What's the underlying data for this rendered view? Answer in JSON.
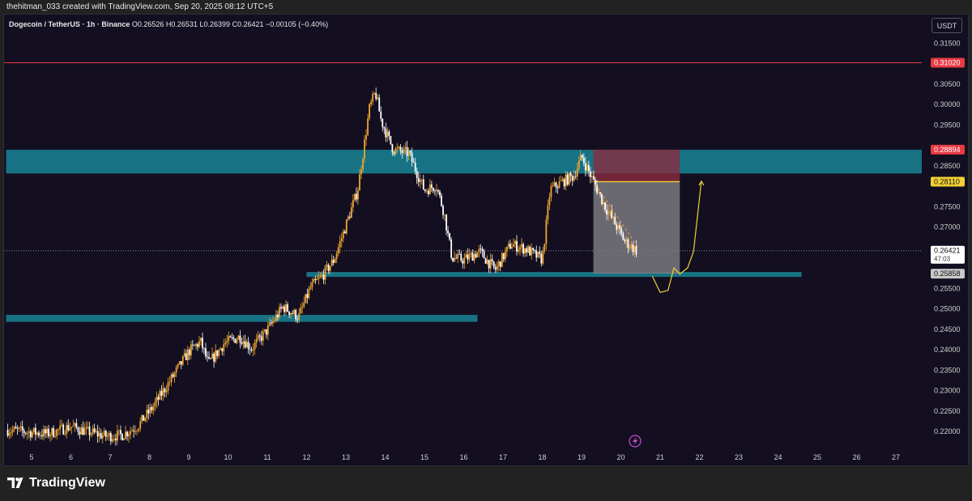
{
  "header": {
    "credit": "thehitman_033 created with TradingView.com, Sep 20, 2025 08:12 UTC+5",
    "symbol_name": "Dogecoin / TetherUS · 1h · Binance",
    "ohlc": "O0.26526 H0.26531 L0.26399 C0.26421 −0.00105 (−0.40%)",
    "currency": "USDT"
  },
  "footer": {
    "brand": "TradingView"
  },
  "colors": {
    "background": "#130f20",
    "up_candle": "#f0a530",
    "down_candle": "#ffffff",
    "zone": "#177283",
    "resistance_line": "#e83a44",
    "target_line": "#f2cf34",
    "stop_box": "#8b2a3e",
    "profit_box": "#7a7880"
  },
  "chart_data": {
    "type": "candlestick",
    "title": "Dogecoin / TetherUS · 1h · Binance",
    "y_axis": {
      "ticks": [
        "0.31500",
        "0.30500",
        "0.30000",
        "0.29500",
        "0.28500",
        "0.27500",
        "0.27000",
        "0.25500",
        "0.25000",
        "0.24500",
        "0.24000",
        "0.23500",
        "0.23000",
        "0.22500",
        "0.22000"
      ],
      "range": [
        0.2175,
        0.3185
      ]
    },
    "x_axis": {
      "ticks": [
        "5",
        "6",
        "7",
        "8",
        "9",
        "10",
        "11",
        "12",
        "13",
        "14",
        "15",
        "16",
        "17",
        "18",
        "19",
        "20",
        "21",
        "22",
        "23",
        "24",
        "25",
        "26",
        "27"
      ],
      "range_days": [
        4.35,
        28.0
      ]
    },
    "price_labels": [
      {
        "value": 0.3102,
        "text": "0.31020",
        "color": "#e83a44"
      },
      {
        "value": 0.28894,
        "text": "0.28894",
        "color": "#e83a44"
      },
      {
        "value": 0.2811,
        "text": "0.28110",
        "color": "#f2cf34"
      },
      {
        "value": 0.26421,
        "text": "0.26421",
        "sub": "47:03",
        "color": "#ffffff"
      },
      {
        "value": 0.25858,
        "text": "0.25858",
        "color": "#c8c8c8"
      }
    ],
    "zones": [
      {
        "name": "upper-resistance-zone",
        "top": 0.2889,
        "bottom": 0.2831,
        "from": 4.35,
        "to": 28.0
      },
      {
        "name": "middle-support-zone",
        "top": 0.259,
        "bottom": 0.2578,
        "from": 12.0,
        "to": 24.6
      },
      {
        "name": "lower-support-zone",
        "top": 0.2485,
        "bottom": 0.2468,
        "from": 4.35,
        "to": 16.35
      }
    ],
    "resistance_line": 0.3102,
    "position": {
      "entry": 0.2811,
      "stop": 0.28894,
      "target": 0.25858,
      "from": 19.3,
      "to": 21.5
    },
    "price_anchors": [
      [
        4.35,
        0.2204
      ],
      [
        5.4,
        0.2194
      ],
      [
        5.7,
        0.2203
      ],
      [
        6.0,
        0.2212
      ],
      [
        6.4,
        0.22
      ],
      [
        6.9,
        0.2188
      ],
      [
        7.3,
        0.2191
      ],
      [
        7.7,
        0.2213
      ],
      [
        8.1,
        0.2261
      ],
      [
        8.6,
        0.2335
      ],
      [
        9.0,
        0.2395
      ],
      [
        9.3,
        0.242
      ],
      [
        9.5,
        0.2365
      ],
      [
        9.9,
        0.2415
      ],
      [
        10.3,
        0.2432
      ],
      [
        10.6,
        0.2403
      ],
      [
        11.0,
        0.2448
      ],
      [
        11.4,
        0.2505
      ],
      [
        11.8,
        0.248
      ],
      [
        12.1,
        0.2552
      ],
      [
        12.4,
        0.258
      ],
      [
        12.7,
        0.262
      ],
      [
        13.0,
        0.2704
      ],
      [
        13.3,
        0.279
      ],
      [
        13.6,
        0.299
      ],
      [
        13.75,
        0.303
      ],
      [
        13.9,
        0.296
      ],
      [
        14.2,
        0.289
      ],
      [
        14.6,
        0.288
      ],
      [
        15.0,
        0.279
      ],
      [
        15.3,
        0.2802
      ],
      [
        15.5,
        0.2735
      ],
      [
        15.7,
        0.2625
      ],
      [
        16.0,
        0.262
      ],
      [
        16.4,
        0.264
      ],
      [
        16.8,
        0.2595
      ],
      [
        17.2,
        0.2658
      ],
      [
        17.6,
        0.2645
      ],
      [
        18.0,
        0.262
      ],
      [
        18.2,
        0.2792
      ],
      [
        18.5,
        0.281
      ],
      [
        18.8,
        0.2825
      ],
      [
        19.0,
        0.2872
      ],
      [
        19.3,
        0.2812
      ],
      [
        19.6,
        0.275
      ],
      [
        19.9,
        0.27
      ],
      [
        20.1,
        0.2665
      ],
      [
        20.4,
        0.2642
      ]
    ],
    "projection_path": [
      [
        20.8,
        0.258
      ],
      [
        21.0,
        0.254
      ],
      [
        21.2,
        0.2545
      ],
      [
        21.35,
        0.26
      ],
      [
        21.5,
        0.2585
      ],
      [
        21.7,
        0.26
      ],
      [
        21.85,
        0.264
      ],
      [
        22.05,
        0.2812
      ]
    ]
  }
}
